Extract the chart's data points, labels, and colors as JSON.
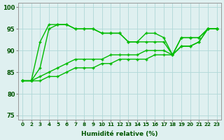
{
  "xlabel": "Humidité relative (%)",
  "bg_color": "#dff0f0",
  "grid_color": "#b0d8d8",
  "line_color": "#00bb00",
  "xlim": [
    -0.5,
    22.5
  ],
  "ylim": [
    74,
    101
  ],
  "yticks": [
    75,
    80,
    85,
    90,
    95,
    100
  ],
  "xtick_labels": [
    "0",
    "2",
    "3",
    "4",
    "5",
    "6",
    "7",
    "8",
    "9",
    "10",
    "11",
    "12",
    "13",
    "14",
    "15",
    "16",
    "17",
    "18",
    "19",
    "20",
    "21",
    "22",
    "23"
  ],
  "line1_y": [
    83,
    83,
    92,
    96,
    96,
    96,
    95,
    95,
    95,
    94,
    94,
    94,
    92,
    92,
    94,
    94,
    93,
    89,
    93,
    93,
    93,
    95,
    95
  ],
  "line2_y": [
    83,
    83,
    86,
    95,
    96,
    96,
    95,
    95,
    95,
    94,
    94,
    94,
    92,
    92,
    92,
    92,
    92,
    89,
    93,
    93,
    93,
    95,
    95
  ],
  "line3_y": [
    83,
    83,
    84,
    85,
    86,
    87,
    88,
    88,
    88,
    88,
    89,
    89,
    89,
    89,
    90,
    90,
    90,
    89,
    91,
    91,
    92,
    95,
    95
  ],
  "line4_y": [
    83,
    83,
    83,
    84,
    84,
    85,
    86,
    86,
    86,
    87,
    87,
    88,
    88,
    88,
    88,
    89,
    89,
    89,
    91,
    91,
    92,
    95,
    95
  ],
  "marker": "+",
  "markersize": 3.5,
  "linewidth": 1.0
}
